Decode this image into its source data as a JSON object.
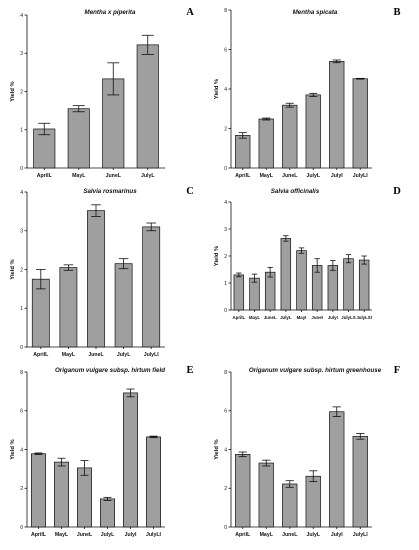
{
  "chart_data": [
    {
      "type": "bar",
      "panel_letter": "A",
      "title": "Mentha x piperita",
      "ylabel": "Yield %",
      "xlabel": "",
      "ylim": [
        0,
        4
      ],
      "yticks": [
        0,
        1,
        2,
        3,
        4
      ],
      "categories": [
        "AprilL",
        "MayL",
        "JuneL",
        "JulyL"
      ],
      "values": [
        1.02,
        1.55,
        2.33,
        3.22
      ],
      "errors": [
        0.15,
        0.08,
        0.42,
        0.25
      ]
    },
    {
      "type": "bar",
      "panel_letter": "B",
      "title": "Mentha spicata",
      "ylabel": "Yield %",
      "xlabel": "",
      "ylim": [
        0,
        8
      ],
      "yticks": [
        0,
        2,
        4,
        6,
        8
      ],
      "categories": [
        "AprilL",
        "MayL",
        "JuneL",
        "JulyL",
        "JulyI",
        "JulyLI"
      ],
      "values": [
        1.65,
        2.48,
        3.18,
        3.7,
        5.4,
        4.52
      ],
      "errors": [
        0.14,
        0.05,
        0.1,
        0.08,
        0.07,
        0.02
      ]
    },
    {
      "type": "bar",
      "panel_letter": "C",
      "title": "Salvia rosmarinus",
      "ylabel": "Yield %",
      "xlabel": "",
      "ylim": [
        0,
        4
      ],
      "yticks": [
        0,
        1,
        2,
        3,
        4
      ],
      "categories": [
        "AprilL",
        "MayL",
        "JuneL",
        "JulyL",
        "JulyLI"
      ],
      "values": [
        1.75,
        2.05,
        3.52,
        2.15,
        3.1
      ],
      "errors": [
        0.25,
        0.07,
        0.15,
        0.13,
        0.1
      ]
    },
    {
      "type": "bar",
      "panel_letter": "D",
      "title": "Salvia officinalis",
      "ylabel": "Yield %",
      "xlabel": "",
      "ylim": [
        0,
        4
      ],
      "yticks": [
        0,
        1,
        2,
        3,
        4
      ],
      "categories": [
        "AprilL",
        "MayL",
        "JuneL",
        "JulyL",
        "MayI",
        "JuneI",
        "JulyI",
        "JulyLS",
        "JulyLSI"
      ],
      "values": [
        1.3,
        1.18,
        1.4,
        2.65,
        2.2,
        1.65,
        1.65,
        1.9,
        1.85
      ],
      "errors": [
        0.07,
        0.15,
        0.18,
        0.1,
        0.1,
        0.25,
        0.18,
        0.15,
        0.15
      ]
    },
    {
      "type": "bar",
      "panel_letter": "E",
      "title": "Origanum vulgare subsp. hirtum field",
      "ylabel": "Yield %",
      "xlabel": "",
      "ylim": [
        0,
        8
      ],
      "yticks": [
        0,
        2,
        4,
        6,
        8
      ],
      "categories": [
        "AprilL",
        "MayL",
        "JuneL",
        "JulyL",
        "JulyI",
        "JulyLI"
      ],
      "values": [
        3.78,
        3.35,
        3.05,
        1.45,
        6.92,
        4.65
      ],
      "errors": [
        0.04,
        0.2,
        0.38,
        0.08,
        0.2,
        0.04
      ]
    },
    {
      "type": "bar",
      "panel_letter": "F",
      "title": "Origanum vulgare subsp. hirtum greenhouse",
      "ylabel": "Yield %",
      "xlabel": "",
      "ylim": [
        0,
        8
      ],
      "yticks": [
        0,
        2,
        4,
        6,
        8
      ],
      "categories": [
        "AprilL",
        "MayL",
        "JuneL",
        "JulyL",
        "JulyI",
        "JulyLI"
      ],
      "values": [
        3.75,
        3.3,
        2.22,
        2.62,
        5.95,
        4.68
      ],
      "errors": [
        0.12,
        0.15,
        0.17,
        0.28,
        0.25,
        0.15
      ]
    }
  ]
}
